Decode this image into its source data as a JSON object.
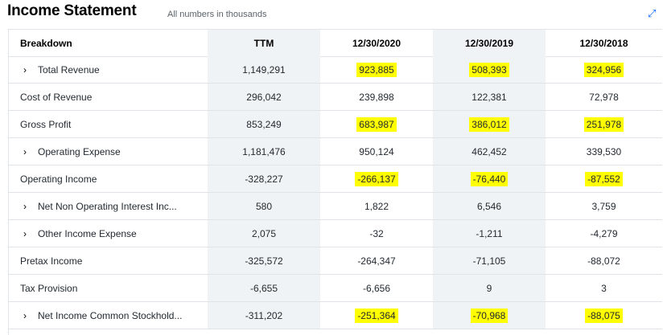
{
  "header": {
    "title": "Income Statement",
    "subtitle": "All numbers in thousands",
    "expand_icon": "expand-icon"
  },
  "columns": [
    "Breakdown",
    "TTM",
    "12/30/2020",
    "12/30/2019",
    "12/30/2018"
  ],
  "rows": [
    {
      "label": "Total Revenue",
      "expandable": true,
      "values": [
        "1,149,291",
        "923,885",
        "508,393",
        "324,956"
      ],
      "highlight": [
        false,
        true,
        true,
        true
      ]
    },
    {
      "label": "Cost of Revenue",
      "expandable": false,
      "values": [
        "296,042",
        "239,898",
        "122,381",
        "72,978"
      ],
      "highlight": [
        false,
        false,
        false,
        false
      ]
    },
    {
      "label": "Gross Profit",
      "expandable": false,
      "values": [
        "853,249",
        "683,987",
        "386,012",
        "251,978"
      ],
      "highlight": [
        false,
        true,
        true,
        true
      ]
    },
    {
      "label": "Operating Expense",
      "expandable": true,
      "values": [
        "1,181,476",
        "950,124",
        "462,452",
        "339,530"
      ],
      "highlight": [
        false,
        false,
        false,
        false
      ]
    },
    {
      "label": "Operating Income",
      "expandable": false,
      "values": [
        "-328,227",
        "-266,137",
        "-76,440",
        "-87,552"
      ],
      "highlight": [
        false,
        true,
        true,
        true
      ]
    },
    {
      "label": "Net Non Operating Interest Inc...",
      "expandable": true,
      "values": [
        "580",
        "1,822",
        "6,546",
        "3,759"
      ],
      "highlight": [
        false,
        false,
        false,
        false
      ]
    },
    {
      "label": "Other Income Expense",
      "expandable": true,
      "values": [
        "2,075",
        "-32",
        "-1,211",
        "-4,279"
      ],
      "highlight": [
        false,
        false,
        false,
        false
      ]
    },
    {
      "label": "Pretax Income",
      "expandable": false,
      "values": [
        "-325,572",
        "-264,347",
        "-71,105",
        "-88,072"
      ],
      "highlight": [
        false,
        false,
        false,
        false
      ]
    },
    {
      "label": "Tax Provision",
      "expandable": false,
      "values": [
        "-6,655",
        "-6,656",
        "9",
        "3"
      ],
      "highlight": [
        false,
        false,
        false,
        false
      ]
    },
    {
      "label": "Net Income Common Stockhold...",
      "expandable": true,
      "values": [
        "-311,202",
        "-251,364",
        "-70,968",
        "-88,075"
      ],
      "highlight": [
        false,
        true,
        true,
        true
      ]
    }
  ],
  "colors": {
    "highlight": "#ffff00",
    "shade": "#f0f3f5",
    "border": "#e0e4e9",
    "accent": "#0f69ff"
  }
}
